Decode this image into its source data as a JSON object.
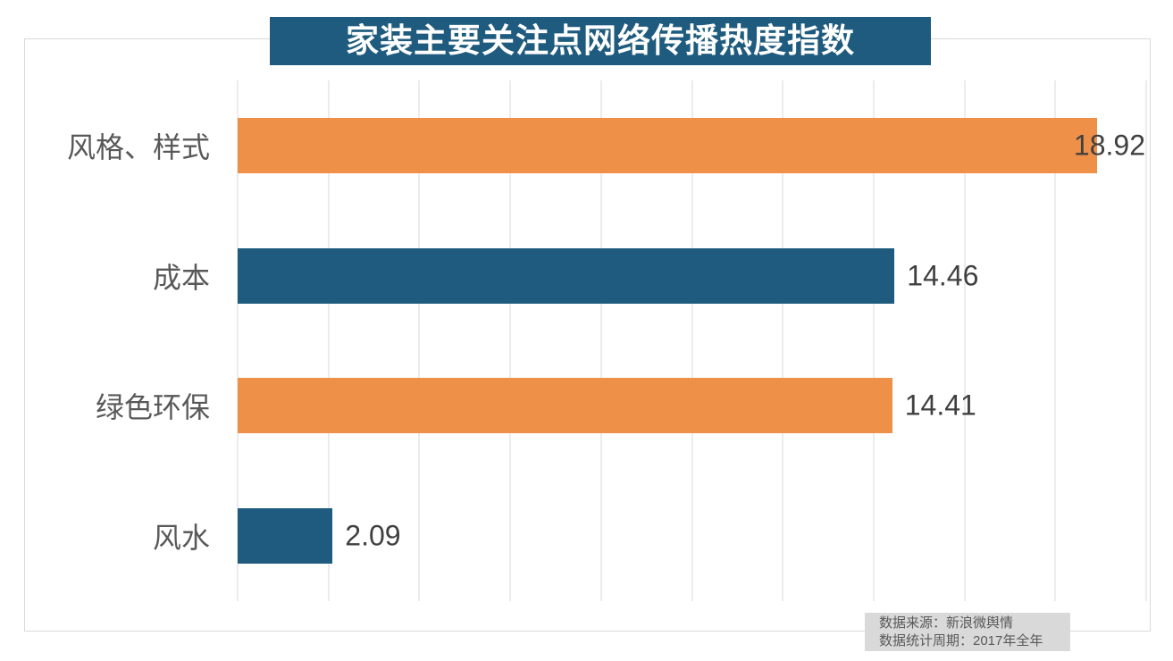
{
  "title": "家装主要关注点网络传播热度指数",
  "source": {
    "line1": "数据来源：新浪微舆情",
    "line2": "数据统计周期：2017年全年"
  },
  "colors": {
    "banner_bg": "#1E5B7E",
    "banner_text": "#FFFFFF",
    "teal_bar": "#1E5B7E",
    "orange_bar": "#EF9048",
    "gridline": "#D9D9D9",
    "frame_border": "#D9D9D9",
    "category_text": "#595959",
    "value_text": "#404040",
    "source_bg": "#D9D9D9",
    "source_text": "#595959"
  },
  "chart_data": {
    "type": "bar",
    "orientation": "horizontal",
    "title": "家装主要关注点网络传播热度指数",
    "categories": [
      "风格、样式",
      "成本",
      "绿色环保",
      "风水"
    ],
    "values": [
      18.92,
      14.46,
      14.41,
      2.09
    ],
    "data_labels": [
      "18.92",
      "14.46",
      "14.41",
      "2.09"
    ],
    "bar_colors": [
      "#EF9048",
      "#1E5B7E",
      "#EF9048",
      "#1E5B7E"
    ],
    "xlabel": "",
    "ylabel": "",
    "xlim": [
      0,
      20
    ],
    "gridline_interval": 2,
    "grid": "vertical",
    "legend": false,
    "axis_tick_labels_visible": false
  }
}
